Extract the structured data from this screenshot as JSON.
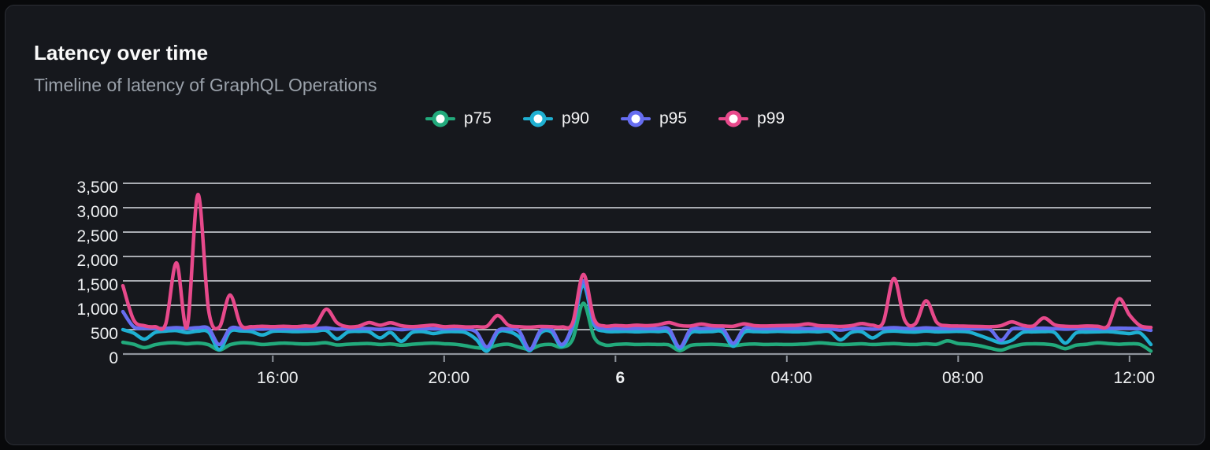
{
  "card": {
    "title": "Latency over time",
    "subtitle": "Timeline of latency of GraphQL Operations"
  },
  "legend": {
    "position": "top-center",
    "items": [
      {
        "label": "p75",
        "color": "#22aa7c"
      },
      {
        "label": "p90",
        "color": "#1fb0d2"
      },
      {
        "label": "p95",
        "color": "#666df0"
      },
      {
        "label": "p99",
        "color": "#e7498b"
      }
    ]
  },
  "colors": {
    "card_background": "#16181d",
    "page_background": "#08090b",
    "card_border": "#2b2e35",
    "gridline": "#dadee3",
    "axis_line": "#8f949c",
    "axis_label": "#eef0f2",
    "title": "#fafafa",
    "subtitle": "#9aa1aa"
  },
  "chart_data": {
    "type": "line",
    "title": "Latency over time",
    "subtitle": "Timeline of latency of GraphQL Operations",
    "grid": true,
    "legend_position": "top-center",
    "unit": "ms",
    "x_axis": {
      "description": "time, 24h window sampled every 15 minutes, starting 12:30 on day 5 and ending 12:30 on day 6",
      "start_time": "12:30",
      "interval_minutes": 15,
      "total_hours": 24,
      "ticks": [
        {
          "label": "16:00",
          "hours_from_start": 3.5,
          "bold": false
        },
        {
          "label": "20:00",
          "hours_from_start": 7.5,
          "bold": false
        },
        {
          "label": "6",
          "hours_from_start": 11.5,
          "bold": true
        },
        {
          "label": "04:00",
          "hours_from_start": 15.5,
          "bold": false
        },
        {
          "label": "08:00",
          "hours_from_start": 19.5,
          "bold": false
        },
        {
          "label": "12:00",
          "hours_from_start": 23.5,
          "bold": false
        }
      ]
    },
    "y_axis": {
      "min": 0,
      "max": 3500,
      "tick_step": 500,
      "tick_labels": [
        "0",
        "500",
        "1,000",
        "1,500",
        "2,000",
        "2,500",
        "3,000",
        "3,500"
      ]
    },
    "series": [
      {
        "name": "p75",
        "color": "#22aa7c",
        "values": [
          240,
          200,
          130,
          190,
          225,
          230,
          210,
          225,
          190,
          80,
          190,
          230,
          225,
          195,
          210,
          225,
          215,
          205,
          215,
          230,
          185,
          200,
          210,
          215,
          195,
          205,
          180,
          200,
          215,
          225,
          210,
          200,
          170,
          130,
          120,
          180,
          200,
          140,
          100,
          180,
          195,
          140,
          300,
          1040,
          350,
          185,
          195,
          205,
          195,
          200,
          195,
          185,
          70,
          175,
          195,
          200,
          190,
          170,
          195,
          205,
          195,
          200,
          195,
          200,
          210,
          230,
          215,
          195,
          200,
          210,
          195,
          205,
          215,
          200,
          195,
          210,
          200,
          270,
          215,
          200,
          170,
          120,
          80,
          150,
          200,
          210,
          205,
          180,
          110,
          180,
          200,
          230,
          215,
          200,
          210,
          195,
          60
        ]
      },
      {
        "name": "p90",
        "color": "#1fb0d2",
        "values": [
          500,
          430,
          305,
          440,
          470,
          480,
          440,
          470,
          450,
          90,
          460,
          475,
          460,
          390,
          465,
          470,
          460,
          465,
          470,
          480,
          310,
          450,
          465,
          455,
          330,
          440,
          260,
          440,
          460,
          420,
          455,
          460,
          440,
          300,
          60,
          440,
          460,
          350,
          70,
          430,
          455,
          160,
          550,
          1410,
          600,
          470,
          460,
          465,
          455,
          465,
          460,
          440,
          110,
          430,
          455,
          460,
          450,
          160,
          440,
          460,
          455,
          465,
          460,
          455,
          465,
          455,
          460,
          290,
          440,
          455,
          330,
          450,
          470,
          455,
          450,
          470,
          455,
          460,
          465,
          450,
          380,
          300,
          230,
          280,
          440,
          455,
          460,
          440,
          225,
          430,
          450,
          455,
          460,
          440,
          420,
          430,
          195
        ]
      },
      {
        "name": "p95",
        "color": "#666df0",
        "values": [
          870,
          560,
          530,
          525,
          525,
          540,
          525,
          540,
          525,
          195,
          520,
          525,
          520,
          510,
          525,
          520,
          525,
          520,
          525,
          535,
          510,
          520,
          525,
          520,
          505,
          520,
          500,
          520,
          525,
          515,
          520,
          520,
          515,
          450,
          145,
          480,
          510,
          470,
          95,
          480,
          510,
          195,
          600,
          1500,
          650,
          530,
          525,
          520,
          525,
          520,
          520,
          510,
          140,
          500,
          520,
          525,
          520,
          220,
          520,
          525,
          520,
          525,
          520,
          525,
          520,
          525,
          520,
          490,
          520,
          525,
          510,
          525,
          540,
          525,
          520,
          535,
          525,
          520,
          525,
          520,
          515,
          500,
          280,
          510,
          520,
          525,
          530,
          520,
          510,
          520,
          525,
          520,
          525,
          530,
          525,
          520,
          485
        ]
      },
      {
        "name": "p99",
        "color": "#e7498b",
        "values": [
          1400,
          700,
          580,
          560,
          620,
          1870,
          560,
          3270,
          900,
          550,
          1210,
          600,
          560,
          570,
          560,
          570,
          560,
          575,
          600,
          920,
          640,
          560,
          570,
          645,
          590,
          640,
          580,
          560,
          575,
          590,
          560,
          570,
          555,
          560,
          570,
          790,
          590,
          560,
          550,
          565,
          560,
          555,
          640,
          1630,
          720,
          575,
          585,
          575,
          590,
          580,
          600,
          645,
          585,
          575,
          615,
          580,
          575,
          570,
          620,
          580,
          575,
          580,
          585,
          590,
          620,
          580,
          575,
          565,
          580,
          625,
          590,
          650,
          1550,
          700,
          620,
          1090,
          650,
          580,
          575,
          570,
          565,
          560,
          580,
          660,
          590,
          575,
          740,
          600,
          570,
          565,
          575,
          570,
          580,
          1130,
          800,
          580,
          545
        ]
      }
    ]
  }
}
